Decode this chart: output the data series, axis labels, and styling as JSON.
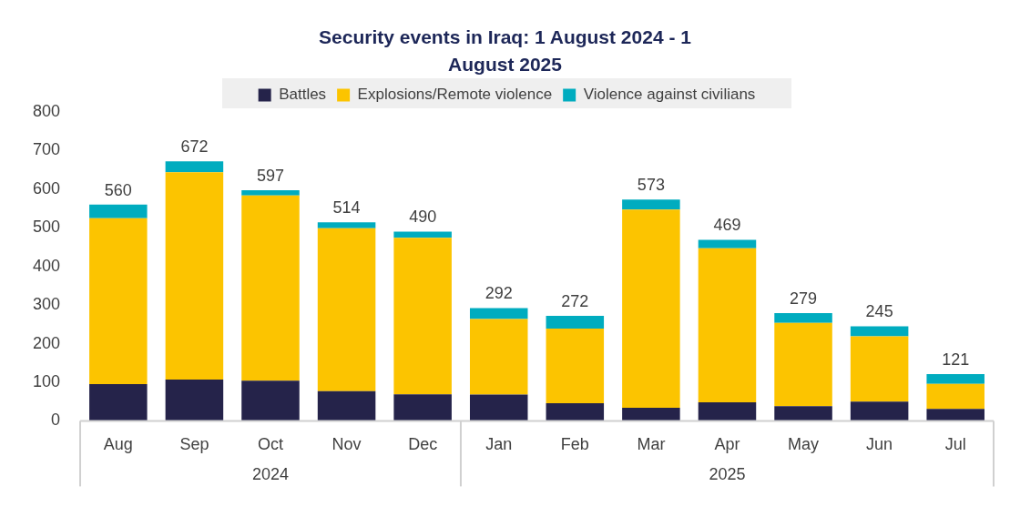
{
  "chart_data": {
    "type": "bar",
    "title": "Security events in Iraq: 1 August 2024 - 1 August 2025",
    "stacked": true,
    "categories": [
      "Aug",
      "Sep",
      "Oct",
      "Nov",
      "Dec",
      "Jan",
      "Feb",
      "Mar",
      "Apr",
      "May",
      "Jun",
      "Jul"
    ],
    "series": [
      {
        "name": "Battles",
        "color": "#25234a",
        "values": [
          95,
          107,
          104,
          77,
          69,
          68,
          46,
          34,
          48,
          38,
          50,
          31
        ]
      },
      {
        "name": "Explosions/Remote violence",
        "color": "#fcc400",
        "values": [
          430,
          537,
          480,
          422,
          405,
          196,
          193,
          513,
          399,
          216,
          169,
          65
        ]
      },
      {
        "name": "Violence against civilians",
        "color": "#00acbf",
        "values": [
          35,
          28,
          13,
          15,
          16,
          28,
          33,
          26,
          22,
          25,
          26,
          25
        ]
      }
    ],
    "totals": [
      "560",
      "672",
      "597",
      "514",
      "490",
      "292",
      "272",
      "573",
      "469",
      "279",
      "245",
      "121"
    ],
    "ylim": [
      0,
      800
    ],
    "yticks": [
      0,
      100,
      200,
      300,
      400,
      500,
      600,
      700,
      800
    ],
    "grid": false,
    "legend": "top",
    "annotations": [
      "2024",
      "2025"
    ]
  }
}
